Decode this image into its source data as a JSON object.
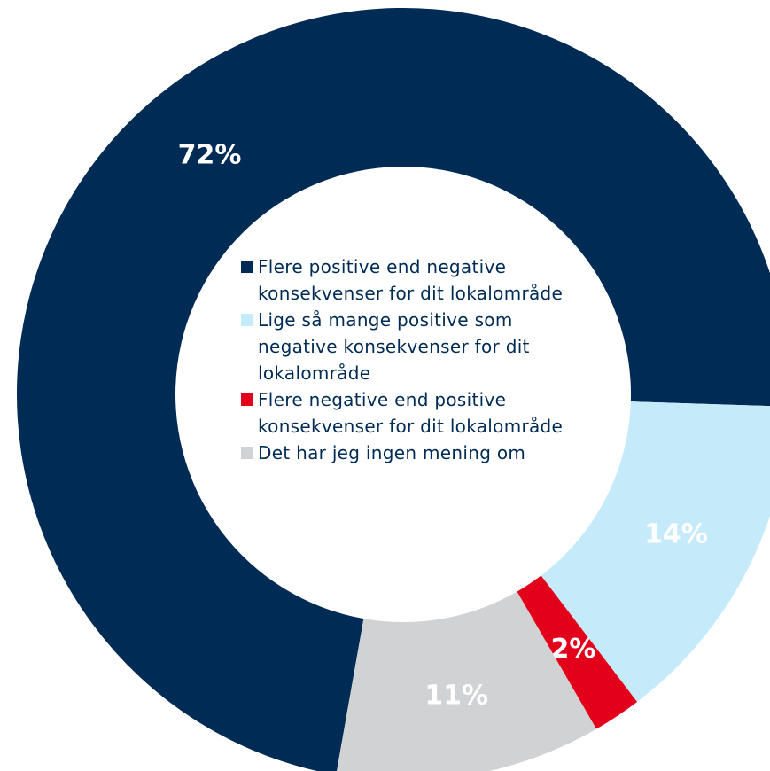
{
  "chart_data": {
    "type": "donut",
    "categories": [
      "Flere positive end negative konsekvenser for dit lokalområde",
      "Lige så mange positive som negative konsekvenser for dit lokalområde",
      "Flere negative end positive konsekvenser for dit lokalområde",
      "Det har jeg ingen mening om"
    ],
    "values": [
      72,
      14,
      2,
      11
    ],
    "value_labels": [
      "72%",
      "14%",
      "2%",
      "11%"
    ],
    "colors": [
      "#002b54",
      "#c5eafa",
      "#e2001a",
      "#d0d2d3"
    ],
    "legend": "center"
  }
}
